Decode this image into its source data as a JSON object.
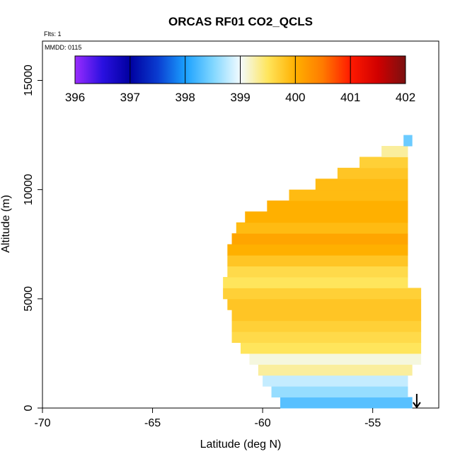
{
  "chart_data": {
    "type": "heatmap",
    "title": "ORCAS RF01 CO2_QCLS",
    "flights_label": "Flts: 1",
    "date_label": "MMDD: 0115",
    "xlabel": "Latitude (deg N)",
    "ylabel": "Altitude (m)",
    "xlim": [
      -70,
      -52
    ],
    "ylim": [
      0,
      16800
    ],
    "x_ticks": [
      -70,
      -65,
      -60,
      -55
    ],
    "x_tick_labels": [
      "-70",
      "-65",
      "-60",
      "-55"
    ],
    "y_ticks": [
      0,
      5000,
      10000,
      15000
    ],
    "y_tick_labels": [
      "0",
      "5000",
      "10000",
      "15000"
    ],
    "colorbar": {
      "min": 396,
      "max": 402,
      "ticks": [
        396,
        397,
        398,
        399,
        400,
        401,
        402
      ],
      "tick_labels": [
        "396",
        "397",
        "398",
        "399",
        "400",
        "401",
        "402"
      ],
      "stops": [
        {
          "v": 396.0,
          "c": "#9a2cff"
        },
        {
          "v": 396.5,
          "c": "#2a10e0"
        },
        {
          "v": 397.0,
          "c": "#0000a0"
        },
        {
          "v": 397.5,
          "c": "#0a3cd0"
        },
        {
          "v": 398.0,
          "c": "#1aa0ff"
        },
        {
          "v": 398.5,
          "c": "#7fd6ff"
        },
        {
          "v": 399.0,
          "c": "#f2fbff"
        },
        {
          "v": 399.5,
          "c": "#ffe55c"
        },
        {
          "v": 400.0,
          "c": "#ffb000"
        },
        {
          "v": 400.5,
          "c": "#ff7a00"
        },
        {
          "v": 401.0,
          "c": "#ff1a00"
        },
        {
          "v": 401.5,
          "c": "#d00000"
        },
        {
          "v": 402.0,
          "c": "#7a1010"
        }
      ]
    },
    "profile_rows": [
      {
        "alt": 250,
        "lat_min": -59.2,
        "lat_max": -53.2,
        "value": 398.3
      },
      {
        "alt": 750,
        "lat_min": -59.6,
        "lat_max": -53.4,
        "value": 398.6
      },
      {
        "alt": 1250,
        "lat_min": -60.0,
        "lat_max": -53.4,
        "value": 398.8
      },
      {
        "alt": 1750,
        "lat_min": -60.2,
        "lat_max": -53.2,
        "value": 399.3
      },
      {
        "alt": 2250,
        "lat_min": -60.6,
        "lat_max": -52.8,
        "value": 399.1
      },
      {
        "alt": 2750,
        "lat_min": -61.0,
        "lat_max": -52.8,
        "value": 399.5
      },
      {
        "alt": 3250,
        "lat_min": -61.4,
        "lat_max": -52.8,
        "value": 399.6
      },
      {
        "alt": 3750,
        "lat_min": -61.4,
        "lat_max": -52.8,
        "value": 399.7
      },
      {
        "alt": 4250,
        "lat_min": -61.4,
        "lat_max": -52.8,
        "value": 399.8
      },
      {
        "alt": 4750,
        "lat_min": -61.6,
        "lat_max": -52.8,
        "value": 399.8
      },
      {
        "alt": 5250,
        "lat_min": -61.8,
        "lat_max": -52.8,
        "value": 399.7
      },
      {
        "alt": 5750,
        "lat_min": -61.8,
        "lat_max": -53.4,
        "value": 399.5
      },
      {
        "alt": 6250,
        "lat_min": -61.6,
        "lat_max": -53.4,
        "value": 399.6
      },
      {
        "alt": 6750,
        "lat_min": -61.6,
        "lat_max": -53.4,
        "value": 399.8
      },
      {
        "alt": 7250,
        "lat_min": -61.6,
        "lat_max": -53.4,
        "value": 400.0
      },
      {
        "alt": 7750,
        "lat_min": -61.4,
        "lat_max": -53.4,
        "value": 400.1
      },
      {
        "alt": 8250,
        "lat_min": -61.2,
        "lat_max": -53.4,
        "value": 399.9
      },
      {
        "alt": 8750,
        "lat_min": -60.8,
        "lat_max": -53.4,
        "value": 400.0
      },
      {
        "alt": 9250,
        "lat_min": -59.8,
        "lat_max": -53.4,
        "value": 400.0
      },
      {
        "alt": 9750,
        "lat_min": -58.8,
        "lat_max": -53.4,
        "value": 399.9
      },
      {
        "alt": 10250,
        "lat_min": -57.6,
        "lat_max": -53.4,
        "value": 399.9
      },
      {
        "alt": 10750,
        "lat_min": -56.6,
        "lat_max": -53.4,
        "value": 399.8
      },
      {
        "alt": 11250,
        "lat_min": -55.6,
        "lat_max": -53.4,
        "value": 399.7
      },
      {
        "alt": 11750,
        "lat_min": -54.6,
        "lat_max": -53.4,
        "value": 399.3
      },
      {
        "alt": 12250,
        "lat_min": -53.6,
        "lat_max": -53.2,
        "value": 398.4
      }
    ],
    "profile_row_height_m": 500,
    "marker": {
      "type": "arrow-down",
      "lat": -53.0,
      "alt": 0
    },
    "grid": false,
    "legend": "top (colorbar inside plot)"
  }
}
